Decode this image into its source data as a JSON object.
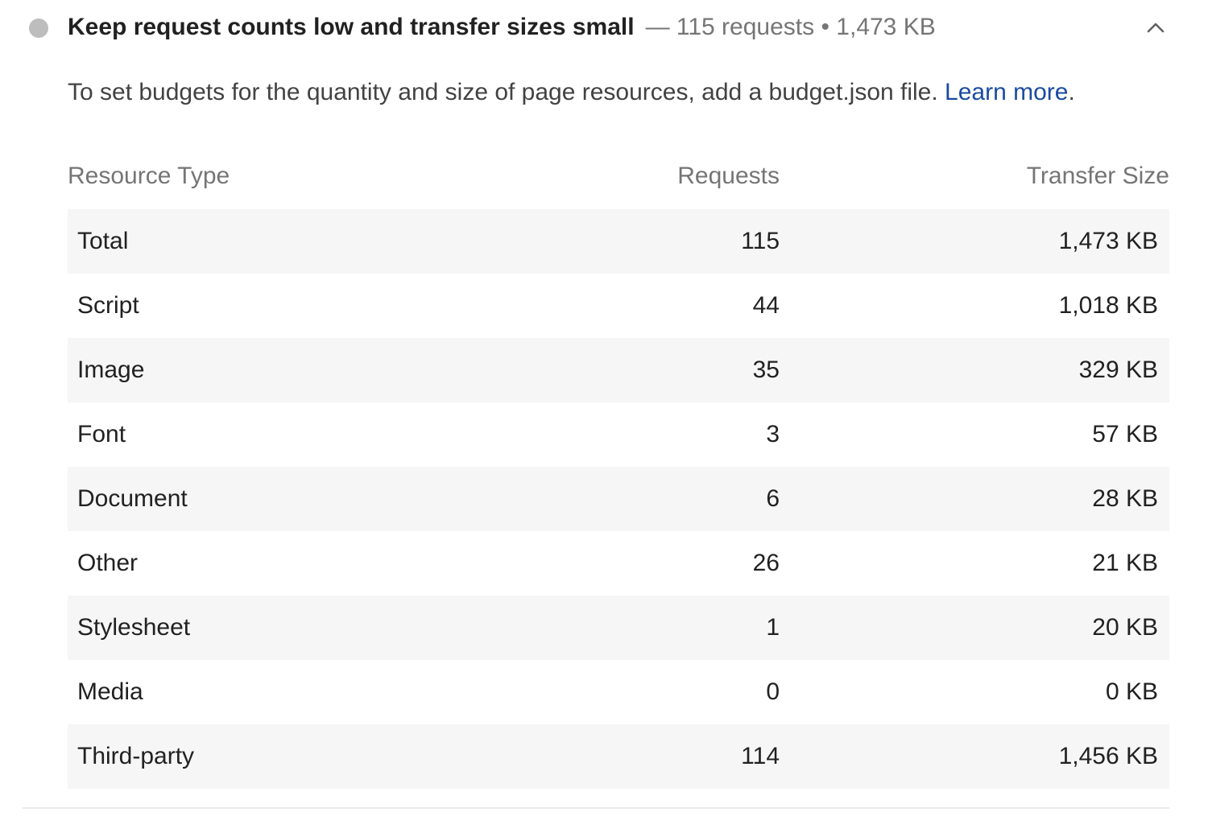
{
  "audit": {
    "title": "Keep request counts low and transfer sizes small",
    "display_value": "— 115 requests • 1,473 KB",
    "status_color": "#bdbdbd",
    "expand_icon": "chevron-up-icon",
    "description": "To set budgets for the quantity and size of page resources, add a budget.json file. ",
    "learn_more": "Learn more",
    "description_end": ".",
    "link_color": "#1a4aa3"
  },
  "table": {
    "headers": {
      "resource_type": "Resource Type",
      "requests": "Requests",
      "transfer_size": "Transfer Size"
    },
    "rows": [
      {
        "type": "Total",
        "requests": "115",
        "size": "1,473 KB"
      },
      {
        "type": "Script",
        "requests": "44",
        "size": "1,018 KB"
      },
      {
        "type": "Image",
        "requests": "35",
        "size": "329 KB"
      },
      {
        "type": "Font",
        "requests": "3",
        "size": "57 KB"
      },
      {
        "type": "Document",
        "requests": "6",
        "size": "28 KB"
      },
      {
        "type": "Other",
        "requests": "26",
        "size": "21 KB"
      },
      {
        "type": "Stylesheet",
        "requests": "1",
        "size": "20 KB"
      },
      {
        "type": "Media",
        "requests": "0",
        "size": "0 KB"
      },
      {
        "type": "Third-party",
        "requests": "114",
        "size": "1,456 KB"
      }
    ]
  }
}
